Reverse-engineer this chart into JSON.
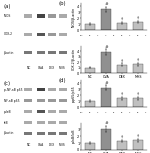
{
  "categories": [
    "NC",
    "OVA",
    "DEX",
    "MHS"
  ],
  "panel_b_top": {
    "ylabel": "iNOS/β-actin",
    "values": [
      1.0,
      3.5,
      1.2,
      1.4
    ],
    "errors": [
      0.15,
      0.4,
      0.2,
      0.2
    ],
    "ylim": [
      0,
      4.5
    ],
    "yticks": [
      0,
      1,
      2,
      3,
      4
    ],
    "hash_bar": 1,
    "dagger_bars": [
      2,
      3
    ]
  },
  "panel_b_bottom": {
    "ylabel": "COX-2/β-actin",
    "values": [
      1.0,
      3.8,
      1.5,
      1.6
    ],
    "errors": [
      0.15,
      0.5,
      0.3,
      0.25
    ],
    "ylim": [
      0,
      5.0
    ],
    "yticks": [
      0,
      1,
      2,
      3,
      4
    ],
    "hash_bar": 1,
    "dagger_bars": [
      2,
      3
    ]
  },
  "panel_d_top": {
    "ylabel": "p-p65/p65",
    "values": [
      1.0,
      3.2,
      1.5,
      1.5
    ],
    "errors": [
      0.15,
      0.4,
      0.25,
      0.25
    ],
    "ylim": [
      0,
      4.5
    ],
    "yticks": [
      0,
      1,
      2,
      3,
      4
    ],
    "hash_bar": 1,
    "dagger_bars": [
      2,
      3
    ]
  },
  "panel_d_bottom": {
    "ylabel": "p-IκB/IκB",
    "values": [
      1.0,
      3.0,
      1.3,
      1.4
    ],
    "errors": [
      0.15,
      0.45,
      0.2,
      0.25
    ],
    "ylim": [
      0,
      4.0
    ],
    "yticks": [
      0,
      1,
      2,
      3
    ],
    "hash_bar": 1,
    "dagger_bars": [
      2,
      3
    ]
  },
  "background_color": "#ffffff",
  "wb_labels_a": [
    "iNOS",
    "COX-2",
    "β-actin"
  ],
  "wb_labels_c": [
    "p-NF-κB p65",
    "NF-κB p65",
    "p-IκB",
    "IκB",
    "β-actin"
  ],
  "x_labels": [
    "NC",
    "OVA",
    "DEX",
    "MHS"
  ],
  "blot_bg": "#e8e8e8",
  "band_intensities_a": [
    [
      "#aaaaaa",
      "#444444",
      "#999999",
      "#aaaaaa"
    ],
    [
      "#aaaaaa",
      "#555555",
      "#999999",
      "#aaaaaa"
    ],
    [
      "#777777",
      "#777777",
      "#777777",
      "#777777"
    ]
  ],
  "band_intensities_c": [
    [
      "#aaaaaa",
      "#444444",
      "#aaaaaa",
      "#aaaaaa"
    ],
    [
      "#999999",
      "#999999",
      "#999999",
      "#999999"
    ],
    [
      "#aaaaaa",
      "#555555",
      "#aaaaaa",
      "#aaaaaa"
    ],
    [
      "#aaaaaa",
      "#aaaaaa",
      "#aaaaaa",
      "#aaaaaa"
    ],
    [
      "#777777",
      "#777777",
      "#777777",
      "#777777"
    ]
  ]
}
